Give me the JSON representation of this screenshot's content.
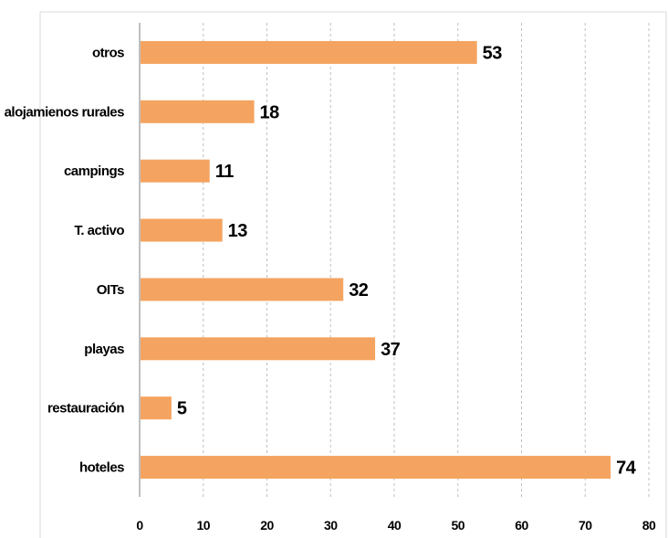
{
  "chart_data": {
    "type": "bar",
    "orientation": "horizontal",
    "categories": [
      "otros",
      "alojamienos rurales",
      "campings",
      "T. activo",
      "OITs",
      "playas",
      "restauración",
      "hoteles"
    ],
    "values": [
      53,
      18,
      11,
      13,
      32,
      37,
      5,
      74
    ],
    "value_labels": [
      "53",
      "18",
      "11",
      "13",
      "32",
      "37",
      "5",
      "74"
    ],
    "xticks": [
      "0",
      "10",
      "20",
      "30",
      "40",
      "50",
      "60",
      "70",
      "80"
    ],
    "xlim": [
      0,
      80
    ],
    "grid": true,
    "legend": "none",
    "bar_color": "#f4a460"
  }
}
